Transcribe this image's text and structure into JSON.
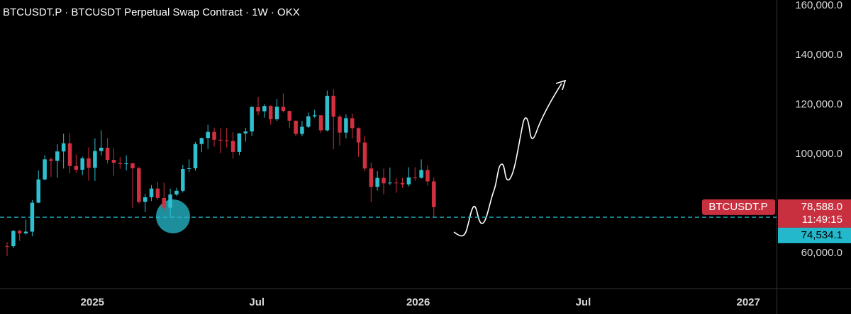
{
  "chart_data": {
    "type": "candlestick",
    "title": "BTCUSDT.P · BTCUSDT Perpetual Swap Contract · 1W · OKX",
    "up_color": "#2fc0d0",
    "down_color": "#d0303f",
    "open": [
      62900,
      62800,
      69000,
      68000,
      68700,
      80400,
      89800,
      97900,
      97300,
      101100,
      104400,
      95200,
      93700,
      98300,
      94500,
      101300,
      102600,
      97700,
      96500,
      96100,
      96300,
      94300,
      80700,
      82600,
      86100,
      82300,
      78400,
      83700,
      85200,
      94000,
      94300,
      104100,
      106500,
      109000,
      105800,
      105600,
      105400,
      100900,
      108400,
      109200,
      119100,
      117300,
      119400,
      114200,
      119200,
      117400,
      113500,
      108200,
      111100,
      115300,
      115700,
      109600,
      123500,
      115200,
      108700,
      114500,
      110500,
      104700,
      94200,
      86800,
      90400,
      88200,
      88500,
      88400,
      87800,
      90600,
      90500,
      93600,
      89000
    ],
    "high": [
      64500,
      69400,
      69500,
      73600,
      81500,
      93400,
      99600,
      98700,
      104000,
      108300,
      108400,
      99900,
      99000,
      102700,
      106400,
      109600,
      106500,
      102500,
      98800,
      99500,
      96500,
      95000,
      84000,
      87500,
      88800,
      88500,
      86100,
      86400,
      95700,
      97900,
      104900,
      106700,
      111900,
      110700,
      110600,
      110600,
      108900,
      108500,
      110600,
      119500,
      123200,
      120200,
      119800,
      122300,
      124500,
      117600,
      113600,
      113400,
      116800,
      117900,
      115800,
      125700,
      126200,
      115900,
      116100,
      116400,
      110800,
      107500,
      96600,
      93100,
      94200,
      94600,
      90500,
      90400,
      94700,
      94700,
      97900,
      95500,
      90500
    ],
    "low": [
      58900,
      62000,
      65000,
      67500,
      66800,
      80200,
      89400,
      90800,
      90500,
      94200,
      92200,
      92500,
      91500,
      89300,
      89200,
      99500,
      96200,
      91200,
      94100,
      93400,
      78300,
      80000,
      76600,
      81100,
      81600,
      77100,
      74500,
      83100,
      84500,
      92800,
      93300,
      100800,
      102100,
      103100,
      100400,
      102700,
      98200,
      99600,
      105100,
      107400,
      115700,
      114700,
      112000,
      113400,
      116800,
      110600,
      107300,
      107300,
      110600,
      114700,
      108600,
      109200,
      102000,
      103500,
      106400,
      106300,
      98900,
      93000,
      80600,
      85300,
      83800,
      87500,
      84400,
      86400,
      86900,
      89300,
      90100,
      87300,
      74500
    ],
    "close": [
      62800,
      69000,
      68000,
      68700,
      80400,
      89800,
      97900,
      97300,
      101100,
      104400,
      95200,
      93700,
      98300,
      94500,
      101300,
      102600,
      97700,
      96500,
      96100,
      96300,
      94300,
      80700,
      82600,
      86100,
      82300,
      78400,
      83700,
      85200,
      94000,
      94300,
      104100,
      106500,
      109000,
      105800,
      105600,
      105400,
      100900,
      108400,
      109200,
      119100,
      117300,
      119400,
      114200,
      119200,
      117400,
      113500,
      108200,
      111100,
      115300,
      115700,
      109600,
      123500,
      115200,
      108700,
      114500,
      110500,
      104700,
      94200,
      86800,
      90400,
      88200,
      88500,
      88400,
      87800,
      90600,
      90500,
      93600,
      89000,
      78588
    ],
    "xlim": [
      -1.13,
      122.6
    ],
    "xticks": [
      {
        "value": 13.6,
        "label": "2025"
      },
      {
        "value": 39.8,
        "label": "Jul"
      },
      {
        "value": 65.5,
        "label": "2026"
      },
      {
        "value": 91.8,
        "label": "Jul"
      },
      {
        "value": 118.1,
        "label": "2027"
      }
    ],
    "ylim": [
      45700,
      162300
    ],
    "yticks": [
      {
        "value": 160000,
        "label": "160,000.0"
      },
      {
        "value": 140000,
        "label": "140,000.0"
      },
      {
        "value": 120000,
        "label": "120,000.0"
      },
      {
        "value": 100000,
        "label": "100,000.0"
      },
      {
        "value": 60000,
        "label": "60,000.0"
      }
    ],
    "last_price": {
      "symbol": "BTCUSDT.P",
      "value": 78588.0,
      "label": "78,588.0",
      "countdown": "11:49:15",
      "color": "#c8303f"
    },
    "level": {
      "value": 74534.1,
      "label": "74,534.1",
      "color": "#23b8cc"
    }
  }
}
